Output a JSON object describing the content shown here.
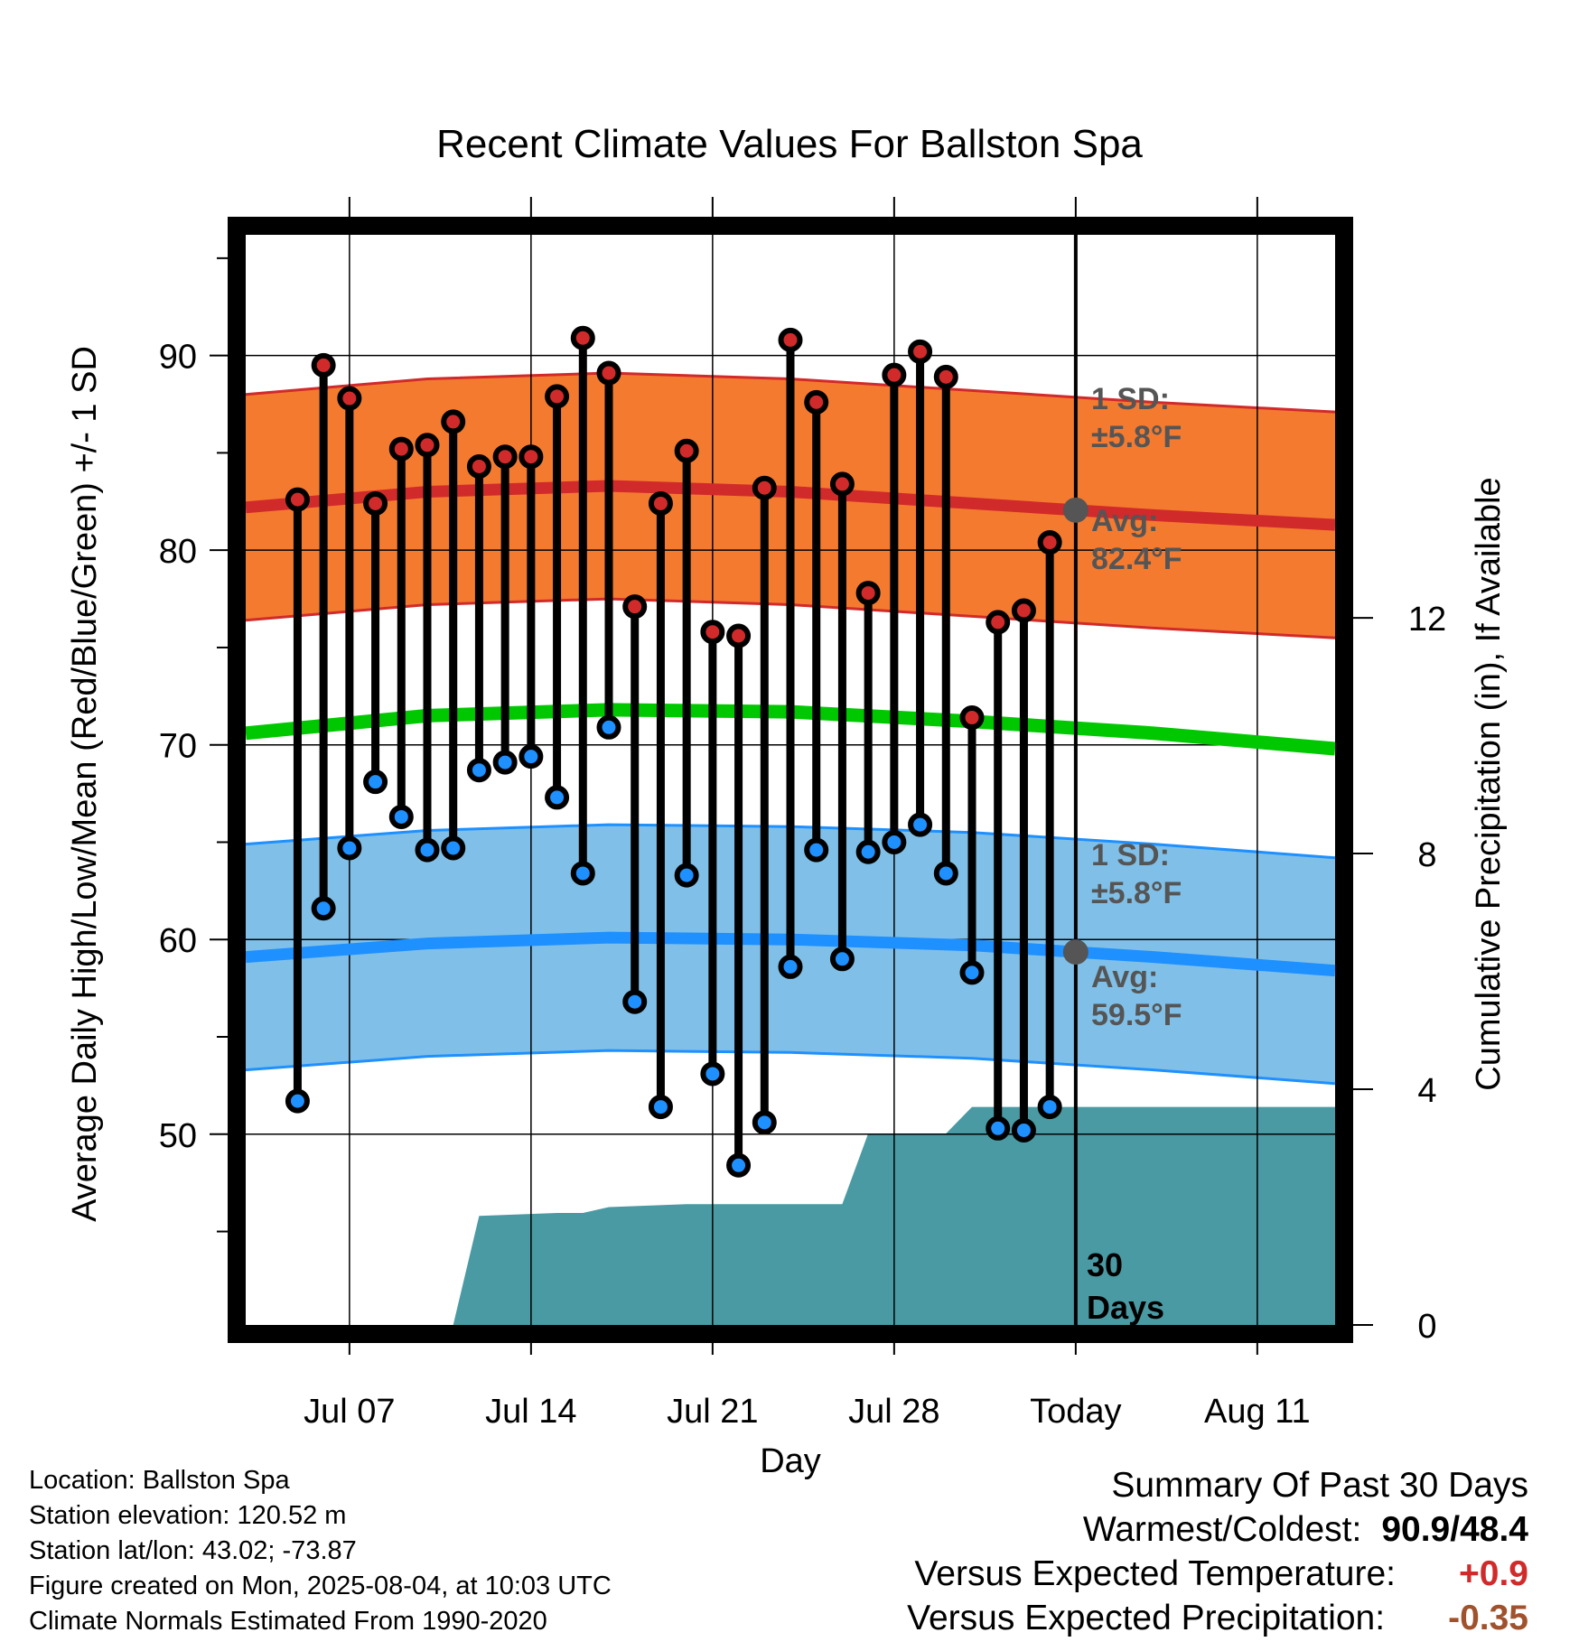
{
  "title": "Recent Climate Values For Ballston Spa",
  "ylabel_left": "Average Daily High/Low/Mean (Red/Blue/Green) +/- 1 SD",
  "ylabel_right": "Cumulative Precipitation (in), If Available",
  "xlabel": "Day",
  "x_tick_labels": [
    "Jul 07",
    "Jul 14",
    "Jul 21",
    "Jul 28",
    "Today",
    "Aug 11"
  ],
  "y_left_ticks": [
    "50",
    "60",
    "70",
    "80",
    "90"
  ],
  "y_right_ticks": [
    "0",
    "4",
    "8",
    "12"
  ],
  "annotations": {
    "high_sd_1": "1 SD:",
    "high_sd_2": "±5.8°F",
    "high_avg_1": "Avg:",
    "high_avg_2": "82.4°F",
    "low_sd_1": "1 SD:",
    "low_sd_2": "±5.8°F",
    "low_avg_1": "Avg:",
    "low_avg_2": "59.5°F",
    "days_1": "30",
    "days_2": "Days"
  },
  "info": {
    "location": "Location: Ballston Spa",
    "elevation": "Station elevation: 120.52 m",
    "latlon": "Station lat/lon: 43.02; -73.87",
    "created": "Figure created on Mon, 2025-08-04, at 10:03 UTC",
    "normals": "Climate Normals Estimated From 1990-2020"
  },
  "summary": {
    "heading": "Summary Of Past 30 Days",
    "warm_cold_label": "Warmest/Coldest:",
    "warm_cold_value": "90.9/48.4",
    "temp_label": "Versus Expected Temperature:",
    "temp_value": "+0.9",
    "precip_label": "Versus Expected Precipitation:",
    "precip_value": "-0.35"
  },
  "colors": {
    "high_band": "#F47A30",
    "high_mean": "#D12A2A",
    "low_band": "#80C0E8",
    "low_mean": "#1E90FF",
    "mean_line": "#00C800",
    "precip": "#4A9AA3",
    "high_dot": "#D12A2A",
    "low_dot": "#1E90FF",
    "today_marker": "#555555",
    "temp_anomaly": "#D12A2A",
    "precip_anomaly": "#A0522D"
  },
  "chart_data": {
    "type": "line",
    "x_axis": {
      "start": "Jul 03",
      "end": "Aug 14",
      "today": "Aug 04"
    },
    "ylim": [
      40.2,
      96.2
    ],
    "ylim_right": [
      0,
      18.5
    ],
    "daily_observed": {
      "days": [
        "Jul 05",
        "Jul 06",
        "Jul 07",
        "Jul 08",
        "Jul 09",
        "Jul 10",
        "Jul 11",
        "Jul 12",
        "Jul 13",
        "Jul 14",
        "Jul 15",
        "Jul 16",
        "Jul 17",
        "Jul 18",
        "Jul 19",
        "Jul 20",
        "Jul 21",
        "Jul 22",
        "Jul 23",
        "Jul 24",
        "Jul 25",
        "Jul 26",
        "Jul 27",
        "Jul 28",
        "Jul 29",
        "Jul 30",
        "Jul 31",
        "Aug 01",
        "Aug 02",
        "Aug 03"
      ],
      "high": [
        82.6,
        89.5,
        87.8,
        82.4,
        85.2,
        85.4,
        86.6,
        84.3,
        84.8,
        84.8,
        87.9,
        90.9,
        89.1,
        77.1,
        82.4,
        85.1,
        75.8,
        75.6,
        83.2,
        90.8,
        87.6,
        83.4,
        77.8,
        89.0,
        90.2,
        88.9,
        71.4,
        76.3,
        76.9,
        80.4
      ],
      "low": [
        51.7,
        61.6,
        64.7,
        68.1,
        66.3,
        64.6,
        64.7,
        68.7,
        69.1,
        69.4,
        67.3,
        63.4,
        70.9,
        56.8,
        51.4,
        63.3,
        53.1,
        48.4,
        50.6,
        58.6,
        64.6,
        59.0,
        64.5,
        65.0,
        65.9,
        63.4,
        58.3,
        50.3,
        50.2,
        51.4
      ]
    },
    "normals": {
      "x": [
        "Jul 03",
        "Jul 10",
        "Jul 17",
        "Jul 24",
        "Jul 31",
        "Aug 07",
        "Aug 14"
      ],
      "high_mean": [
        82.2,
        83.0,
        83.3,
        83.0,
        82.4,
        81.8,
        81.3
      ],
      "high_sd": 5.8,
      "low_mean": [
        59.1,
        59.8,
        60.1,
        60.0,
        59.7,
        59.1,
        58.4
      ],
      "low_sd": 5.8,
      "mean": [
        70.6,
        71.5,
        71.8,
        71.7,
        71.2,
        70.6,
        69.8
      ]
    },
    "cumulative_precipitation": {
      "x": [
        "Jul 03",
        "Jul 11",
        "Jul 12",
        "Jul 15",
        "Jul 16",
        "Jul 17",
        "Jul 20",
        "Jul 26",
        "Jul 27",
        "Jul 30",
        "Jul 31",
        "Aug 14"
      ],
      "values": [
        0,
        0,
        1.85,
        1.9,
        1.9,
        2.0,
        2.05,
        2.05,
        3.25,
        3.25,
        3.7,
        3.7
      ]
    }
  }
}
